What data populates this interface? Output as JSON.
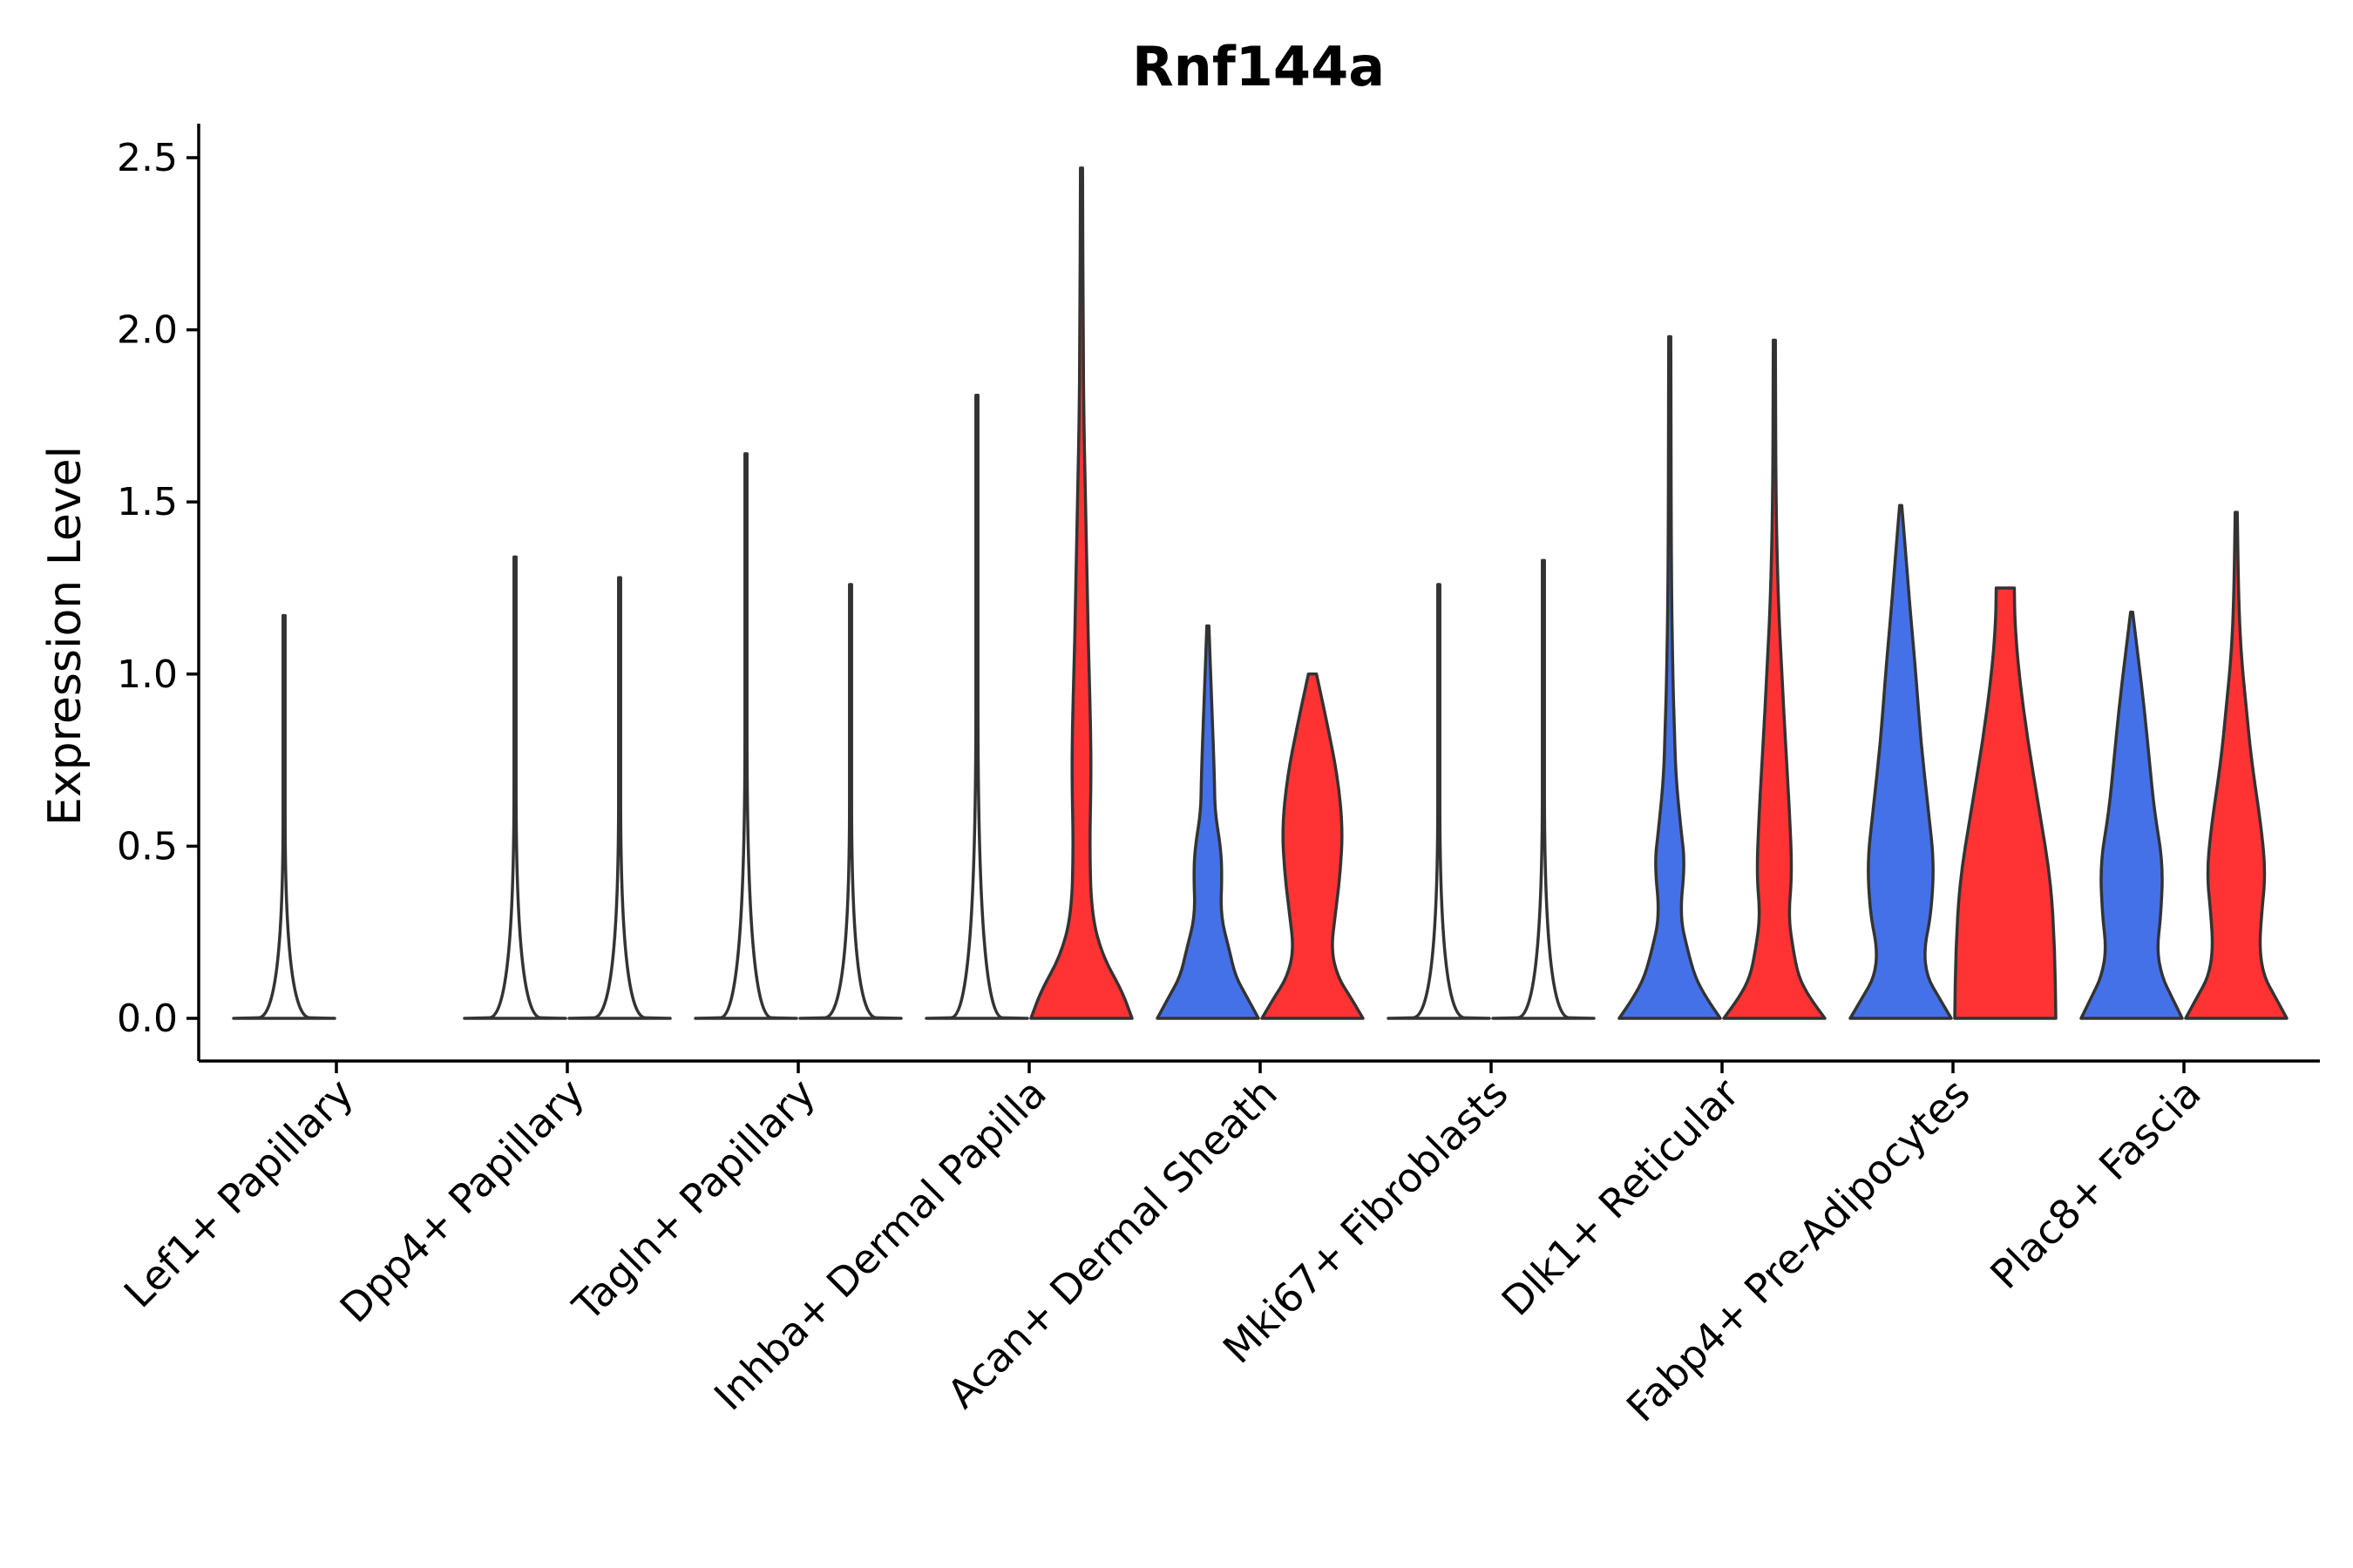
{
  "chart_data": {
    "type": "violin",
    "title": "Rnf144a",
    "ylabel": "Expression Level",
    "xlabel": "",
    "ylim": [
      -0.12,
      2.6
    ],
    "yticks": [
      "0.0",
      "0.5",
      "1.0",
      "1.5",
      "2.0",
      "2.5"
    ],
    "series_colors": {
      "group1": "#4571E8",
      "group2": "#FF3333"
    },
    "categories": [
      "Lef1+ Papillary",
      "Dpp4+ Papillary",
      "Tagln+ Papillary",
      "Inhba+ Dermal Papilla",
      "Acan+ Dermal Sheath",
      "Mki67+ Fibroblasts",
      "Dlk1+ Reticular",
      "Fabp4+ Pre-Adipocytes",
      "Plac8+ Fascia"
    ],
    "violins": [
      {
        "category": "Lef1+ Papillary",
        "group": "group1",
        "color": "#4571E8",
        "max": 1.17,
        "profile": [
          [
            0,
            1
          ],
          [
            0.003,
            0.02
          ],
          [
            1.17,
            0.02
          ]
        ]
      },
      {
        "category": "Lef1+ Papillary",
        "group": "group2",
        "color": "#FF3333",
        "max": 0.0,
        "profile": [
          [
            0,
            0
          ]
        ]
      },
      {
        "category": "Dpp4+ Papillary",
        "group": "group1",
        "color": "#4571E8",
        "max": 1.34,
        "profile": [
          [
            0,
            1
          ],
          [
            0.003,
            0.02
          ],
          [
            1.34,
            0.02
          ]
        ]
      },
      {
        "category": "Dpp4+ Papillary",
        "group": "group2",
        "color": "#FF3333",
        "max": 1.28,
        "profile": [
          [
            0,
            1
          ],
          [
            0.003,
            0.02
          ],
          [
            1.28,
            0.02
          ]
        ]
      },
      {
        "category": "Tagln+ Papillary",
        "group": "group1",
        "color": "#4571E8",
        "max": 1.64,
        "profile": [
          [
            0,
            1
          ],
          [
            0.003,
            0.02
          ],
          [
            1.64,
            0.02
          ]
        ]
      },
      {
        "category": "Tagln+ Papillary",
        "group": "group2",
        "color": "#FF3333",
        "max": 1.26,
        "profile": [
          [
            0,
            1
          ],
          [
            0.003,
            0.02
          ],
          [
            1.26,
            0.02
          ]
        ]
      },
      {
        "category": "Inhba+ Dermal Papilla",
        "group": "group1",
        "color": "#4571E8",
        "max": 1.81,
        "profile": [
          [
            0,
            1
          ],
          [
            0.003,
            0.02
          ],
          [
            1.81,
            0.02
          ]
        ]
      },
      {
        "category": "Inhba+ Dermal Papilla",
        "group": "group2",
        "color": "#FF3333",
        "max": 2.47,
        "profile": [
          [
            0,
            1
          ],
          [
            0.08,
            0.8
          ],
          [
            0.18,
            0.42
          ],
          [
            0.3,
            0.2
          ],
          [
            0.5,
            0.16
          ],
          [
            0.7,
            0.19
          ],
          [
            0.85,
            0.18
          ],
          [
            1.0,
            0.15
          ],
          [
            1.2,
            0.12
          ],
          [
            1.5,
            0.08
          ],
          [
            1.7,
            0.05
          ],
          [
            2.0,
            0.03
          ],
          [
            2.47,
            0.02
          ]
        ]
      },
      {
        "category": "Acan+ Dermal Sheath",
        "group": "group1",
        "color": "#4571E8",
        "max": 1.14,
        "profile": [
          [
            0,
            1
          ],
          [
            0.06,
            0.78
          ],
          [
            0.12,
            0.55
          ],
          [
            0.2,
            0.42
          ],
          [
            0.3,
            0.25
          ],
          [
            0.42,
            0.28
          ],
          [
            0.5,
            0.25
          ],
          [
            0.6,
            0.14
          ],
          [
            0.7,
            0.13
          ],
          [
            0.9,
            0.08
          ],
          [
            1.14,
            0.02
          ]
        ]
      },
      {
        "category": "Acan+ Dermal Sheath",
        "group": "group2",
        "color": "#FF3333",
        "max": 1.0,
        "profile": [
          [
            0,
            1
          ],
          [
            0.06,
            0.76
          ],
          [
            0.12,
            0.5
          ],
          [
            0.2,
            0.37
          ],
          [
            0.3,
            0.45
          ],
          [
            0.42,
            0.55
          ],
          [
            0.55,
            0.6
          ],
          [
            0.7,
            0.5
          ],
          [
            0.85,
            0.3
          ],
          [
            1.0,
            0.08
          ]
        ]
      },
      {
        "category": "Mki67+ Fibroblasts",
        "group": "group1",
        "color": "#4571E8",
        "max": 1.26,
        "profile": [
          [
            0,
            1
          ],
          [
            0.003,
            0.02
          ],
          [
            1.26,
            0.02
          ]
        ]
      },
      {
        "category": "Mki67+ Fibroblasts",
        "group": "group2",
        "color": "#FF3333",
        "max": 1.33,
        "profile": [
          [
            0,
            1
          ],
          [
            0.003,
            0.02
          ],
          [
            1.33,
            0.02
          ]
        ]
      },
      {
        "category": "Dlk1+ Reticular",
        "group": "group1",
        "color": "#4571E8",
        "max": 1.98,
        "profile": [
          [
            0,
            1
          ],
          [
            0.06,
            0.72
          ],
          [
            0.12,
            0.5
          ],
          [
            0.2,
            0.35
          ],
          [
            0.3,
            0.2
          ],
          [
            0.45,
            0.3
          ],
          [
            0.55,
            0.22
          ],
          [
            0.7,
            0.12
          ],
          [
            0.85,
            0.09
          ],
          [
            1.0,
            0.06
          ],
          [
            1.3,
            0.03
          ],
          [
            1.98,
            0.02
          ]
        ]
      },
      {
        "category": "Dlk1+ Reticular",
        "group": "group2",
        "color": "#FF3333",
        "max": 1.97,
        "profile": [
          [
            0,
            1
          ],
          [
            0.06,
            0.7
          ],
          [
            0.12,
            0.48
          ],
          [
            0.2,
            0.37
          ],
          [
            0.3,
            0.28
          ],
          [
            0.42,
            0.35
          ],
          [
            0.6,
            0.3
          ],
          [
            0.8,
            0.22
          ],
          [
            1.0,
            0.15
          ],
          [
            1.2,
            0.08
          ],
          [
            1.5,
            0.03
          ],
          [
            1.97,
            0.02
          ]
        ]
      },
      {
        "category": "Fabp4+ Pre-Adipocytes",
        "group": "group1",
        "color": "#4571E8",
        "max": 1.49,
        "profile": [
          [
            0,
            1
          ],
          [
            0.06,
            0.76
          ],
          [
            0.12,
            0.52
          ],
          [
            0.2,
            0.46
          ],
          [
            0.3,
            0.6
          ],
          [
            0.45,
            0.66
          ],
          [
            0.6,
            0.55
          ],
          [
            0.8,
            0.4
          ],
          [
            1.0,
            0.3
          ],
          [
            1.2,
            0.18
          ],
          [
            1.35,
            0.1
          ],
          [
            1.49,
            0.02
          ]
        ]
      },
      {
        "category": "Fabp4+ Pre-Adipocytes",
        "group": "group2",
        "color": "#FF3333",
        "max": 1.25,
        "profile": [
          [
            0,
            1
          ],
          [
            0.2,
            0.98
          ],
          [
            0.4,
            0.9
          ],
          [
            0.6,
            0.68
          ],
          [
            0.8,
            0.45
          ],
          [
            1.0,
            0.27
          ],
          [
            1.15,
            0.19
          ],
          [
            1.25,
            0.18
          ]
        ]
      },
      {
        "category": "Plac8+ Fascia",
        "group": "group1",
        "color": "#4571E8",
        "max": 1.18,
        "profile": [
          [
            0,
            1
          ],
          [
            0.06,
            0.8
          ],
          [
            0.12,
            0.6
          ],
          [
            0.2,
            0.5
          ],
          [
            0.3,
            0.58
          ],
          [
            0.45,
            0.62
          ],
          [
            0.6,
            0.45
          ],
          [
            0.75,
            0.35
          ],
          [
            0.9,
            0.25
          ],
          [
            1.05,
            0.13
          ],
          [
            1.18,
            0.02
          ]
        ]
      },
      {
        "category": "Plac8+ Fascia",
        "group": "group2",
        "color": "#FF3333",
        "max": 1.47,
        "profile": [
          [
            0,
            1
          ],
          [
            0.06,
            0.78
          ],
          [
            0.12,
            0.55
          ],
          [
            0.2,
            0.46
          ],
          [
            0.3,
            0.5
          ],
          [
            0.42,
            0.58
          ],
          [
            0.55,
            0.5
          ],
          [
            0.75,
            0.3
          ],
          [
            0.9,
            0.2
          ],
          [
            1.05,
            0.1
          ],
          [
            1.2,
            0.05
          ],
          [
            1.47,
            0.02
          ]
        ]
      }
    ]
  }
}
